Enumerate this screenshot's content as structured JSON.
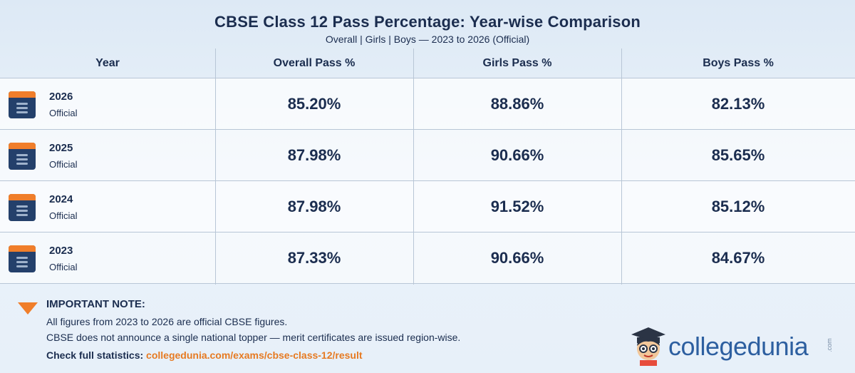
{
  "header": {
    "title": "CBSE Class 12 Pass Percentage: Year-wise Comparison",
    "subtitle": "Overall | Girls | Boys — 2023 to 2026 (Official)"
  },
  "chart_data": {
    "type": "table",
    "title": "CBSE Class 12 Pass Percentage: Year-wise Comparison",
    "subtitle": "Overall | Girls | Boys — 2023 to 2026 (Official)",
    "columns": [
      "Year",
      "Overall Pass %",
      "Girls Pass %",
      "Boys Pass %"
    ],
    "rows": [
      {
        "year": "2026",
        "status": "Official",
        "overall": "85.20%",
        "girls": "88.86%",
        "boys": "82.13%"
      },
      {
        "year": "2025",
        "status": "Official",
        "overall": "87.98%",
        "girls": "90.66%",
        "boys": "85.65%"
      },
      {
        "year": "2024",
        "status": "Official",
        "overall": "87.98%",
        "girls": "91.52%",
        "boys": "85.12%"
      },
      {
        "year": "2023",
        "status": "Official",
        "overall": "87.33%",
        "girls": "90.66%",
        "boys": "84.67%"
      }
    ]
  },
  "note": {
    "title": "IMPORTANT NOTE:",
    "line1": "All figures from 2023 to 2026 are official CBSE figures.",
    "line2": "CBSE does not announce a single national topper — merit certificates are issued region-wise.",
    "link_label": "Check full statistics:",
    "link_url": "collegedunia.com/exams/cbse-class-12/result"
  },
  "brand": {
    "name": "collegedunia",
    "suffix": ".com"
  },
  "colors": {
    "accent": "#f07e2a",
    "text": "#1b2d4f",
    "calendar": "#24406b",
    "brand": "#2d5fa0"
  }
}
